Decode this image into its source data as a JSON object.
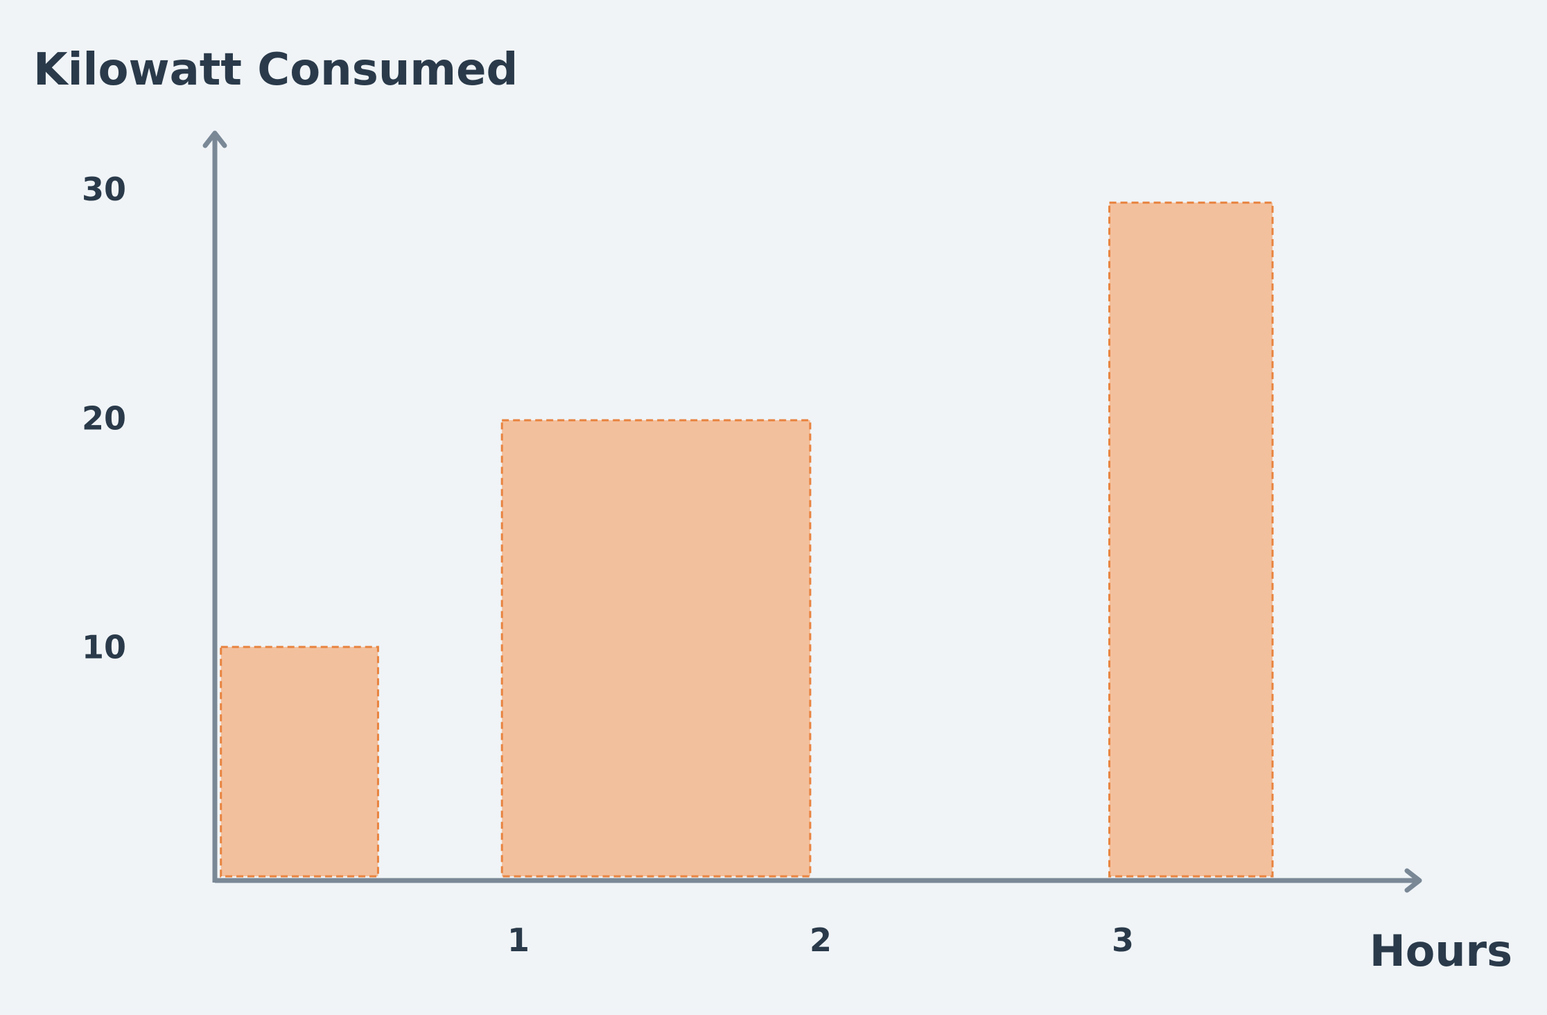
{
  "chart_data": {
    "type": "bar",
    "title": "",
    "ylabel": "Kilowatt Consumed",
    "xlabel": "Hours",
    "xlim": [
      0,
      4
    ],
    "ylim": [
      0,
      33
    ],
    "x_ticks": [
      1,
      2,
      3
    ],
    "y_ticks": [
      10,
      20,
      30
    ],
    "grid": false,
    "series": [
      {
        "values": [
          {
            "x_start": 0.02,
            "x_end": 0.54,
            "y": 10.2
          },
          {
            "x_start": 0.95,
            "x_end": 1.97,
            "y": 20.1
          },
          {
            "x_start": 2.96,
            "x_end": 3.5,
            "y": 29.6
          }
        ]
      }
    ],
    "colors": {
      "bar_fill": "#f3c09d",
      "bar_stroke": "#e8833f",
      "axis": "#7a8896",
      "text": "#2a3a4a",
      "background": "#f0f4f7"
    }
  }
}
